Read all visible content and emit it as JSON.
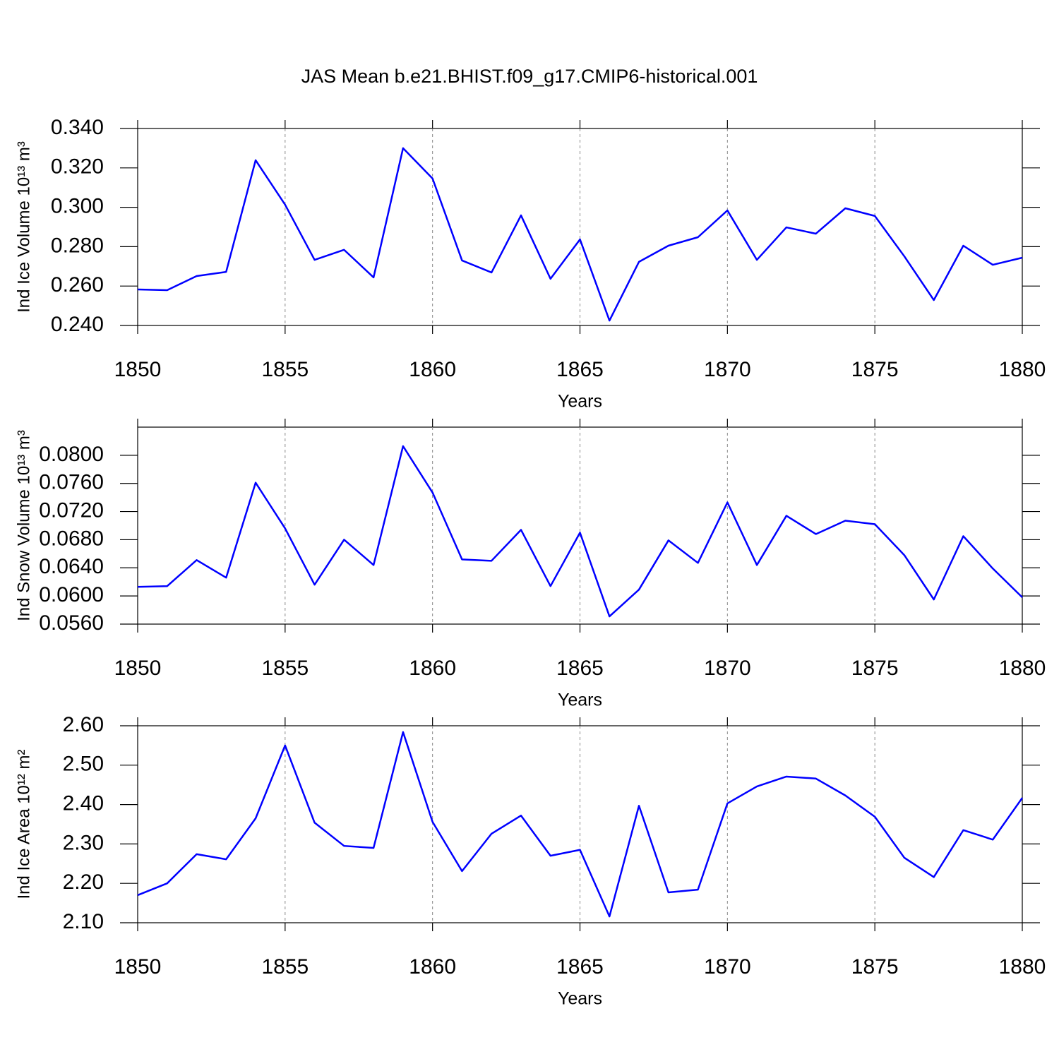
{
  "chart_data": [
    {
      "type": "line",
      "title": "JAS Mean b.e21.BHIST.f09_g17.CMIP6-historical.001",
      "ylabel": "Ind Ice Volume 10¹³ m³",
      "xlabel": "Years",
      "x": [
        1850,
        1851,
        1852,
        1853,
        1854,
        1855,
        1856,
        1857,
        1858,
        1859,
        1860,
        1861,
        1862,
        1863,
        1864,
        1865,
        1866,
        1867,
        1868,
        1869,
        1870,
        1871,
        1872,
        1873,
        1874,
        1875,
        1876,
        1877,
        1878,
        1879,
        1880
      ],
      "series": [
        {
          "color": "#0000ff",
          "values": [
            0.2583,
            0.2579,
            0.2651,
            0.2672,
            0.3239,
            0.3013,
            0.2733,
            0.2784,
            0.2644,
            0.33,
            0.3146,
            0.273,
            0.2669,
            0.2959,
            0.2637,
            0.2837,
            0.2425,
            0.2723,
            0.2805,
            0.2848,
            0.2984,
            0.2733,
            0.2898,
            0.2866,
            0.2995,
            0.2956,
            0.2751,
            0.2529,
            0.2805,
            0.2708,
            0.2744
          ]
        }
      ],
      "xlim": [
        1850,
        1880
      ],
      "xticks": [
        1850,
        1855,
        1860,
        1865,
        1870,
        1875,
        1880
      ],
      "ylim": [
        0.24,
        0.34
      ],
      "yticks": [
        {
          "value": 0.24,
          "label": "0.240"
        },
        {
          "value": 0.26,
          "label": "0.260"
        },
        {
          "value": 0.28,
          "label": "0.280"
        },
        {
          "value": 0.3,
          "label": "0.300"
        },
        {
          "value": 0.32,
          "label": "0.320"
        },
        {
          "value": 0.34,
          "label": "0.340"
        }
      ],
      "xgrid": true
    },
    {
      "type": "line",
      "ylabel": "Ind Snow Volume 10¹³ m³",
      "xlabel": "Years",
      "x": [
        1850,
        1851,
        1852,
        1853,
        1854,
        1855,
        1856,
        1857,
        1858,
        1859,
        1860,
        1861,
        1862,
        1863,
        1864,
        1865,
        1866,
        1867,
        1868,
        1869,
        1870,
        1871,
        1872,
        1873,
        1874,
        1875,
        1876,
        1877,
        1878,
        1879,
        1880
      ],
      "series": [
        {
          "color": "#0000ff",
          "values": [
            0.0613,
            0.0614,
            0.0651,
            0.0626,
            0.0761,
            0.0696,
            0.0616,
            0.068,
            0.0644,
            0.0813,
            0.0747,
            0.0652,
            0.065,
            0.0694,
            0.0614,
            0.069,
            0.0571,
            0.0609,
            0.0679,
            0.0647,
            0.0733,
            0.0644,
            0.0714,
            0.0688,
            0.0707,
            0.0702,
            0.0658,
            0.0595,
            0.0685,
            0.0639,
            0.0598
          ]
        }
      ],
      "xlim": [
        1850,
        1880
      ],
      "xticks": [
        1850,
        1855,
        1860,
        1865,
        1870,
        1875,
        1880
      ],
      "ylim": [
        0.056,
        0.084
      ],
      "yticks": [
        {
          "value": 0.056,
          "label": "0.0560"
        },
        {
          "value": 0.06,
          "label": "0.0600"
        },
        {
          "value": 0.064,
          "label": "0.0640"
        },
        {
          "value": 0.068,
          "label": "0.0680"
        },
        {
          "value": 0.072,
          "label": "0.0720"
        },
        {
          "value": 0.076,
          "label": "0.0760"
        },
        {
          "value": 0.08,
          "label": "0.0800"
        }
      ],
      "xgrid": true
    },
    {
      "type": "line",
      "ylabel": "Ind Ice Area 10¹² m²",
      "xlabel": "Years",
      "x": [
        1850,
        1851,
        1852,
        1853,
        1854,
        1855,
        1856,
        1857,
        1858,
        1859,
        1860,
        1861,
        1862,
        1863,
        1864,
        1865,
        1866,
        1867,
        1868,
        1869,
        1870,
        1871,
        1872,
        1873,
        1874,
        1875,
        1876,
        1877,
        1878,
        1879,
        1880
      ],
      "series": [
        {
          "color": "#0000ff",
          "values": [
            2.17,
            2.2,
            2.274,
            2.261,
            2.365,
            2.55,
            2.354,
            2.295,
            2.29,
            2.584,
            2.356,
            2.231,
            2.326,
            2.372,
            2.27,
            2.285,
            2.116,
            2.397,
            2.177,
            2.184,
            2.403,
            2.446,
            2.471,
            2.466,
            2.423,
            2.369,
            2.265,
            2.216,
            2.335,
            2.311,
            2.417
          ]
        }
      ],
      "xlim": [
        1850,
        1880
      ],
      "xticks": [
        1850,
        1855,
        1860,
        1865,
        1870,
        1875,
        1880
      ],
      "ylim": [
        2.1,
        2.6
      ],
      "yticks": [
        {
          "value": 2.1,
          "label": "2.10"
        },
        {
          "value": 2.2,
          "label": "2.20"
        },
        {
          "value": 2.3,
          "label": "2.30"
        },
        {
          "value": 2.4,
          "label": "2.40"
        },
        {
          "value": 2.5,
          "label": "2.50"
        },
        {
          "value": 2.6,
          "label": "2.60"
        }
      ],
      "xgrid": true
    }
  ]
}
